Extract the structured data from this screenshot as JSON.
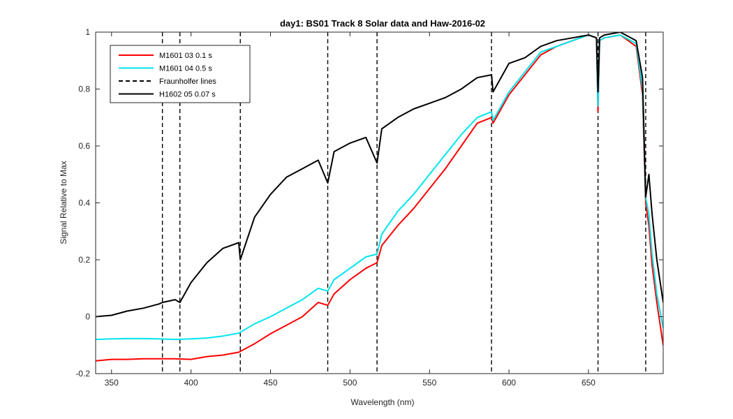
{
  "chart_data": {
    "type": "line",
    "title": "day1: BS01  Track 8 Solar data and Haw-2016-02",
    "xlabel": "Wavelength (nm)",
    "ylabel": "Signal Relative to Max",
    "xlim": [
      340,
      697
    ],
    "ylim": [
      -0.2,
      1
    ],
    "xticks": [
      350,
      400,
      450,
      500,
      550,
      600,
      650
    ],
    "yticks": [
      -0.2,
      0,
      0.2,
      0.4,
      0.6,
      0.8,
      1
    ],
    "xtick_labels": [
      "350",
      "400",
      "450",
      "500",
      "550",
      "600",
      "650"
    ],
    "ytick_labels": [
      "-0.2",
      "0",
      "0.2",
      "0.4",
      "0.6",
      "0.8",
      "1"
    ],
    "grid": false,
    "legend_position": "top-left",
    "vlines": [
      382,
      393,
      431,
      486,
      517,
      589,
      656,
      686
    ],
    "series": [
      {
        "name": "M1601 03 0.1 s",
        "color": "#ff0000",
        "style": "solid",
        "x": [
          340,
          350,
          360,
          370,
          380,
          390,
          400,
          410,
          420,
          430,
          440,
          450,
          460,
          470,
          480,
          486,
          490,
          500,
          510,
          517,
          520,
          530,
          540,
          550,
          560,
          570,
          580,
          589,
          590,
          600,
          610,
          620,
          630,
          640,
          650,
          655,
          656,
          657,
          660,
          670,
          680,
          684,
          686,
          688,
          690,
          693,
          697
        ],
        "y": [
          -0.155,
          -0.15,
          -0.15,
          -0.148,
          -0.148,
          -0.148,
          -0.15,
          -0.14,
          -0.135,
          -0.125,
          -0.095,
          -0.06,
          -0.03,
          0.0,
          0.05,
          0.04,
          0.08,
          0.13,
          0.17,
          0.19,
          0.25,
          0.32,
          0.38,
          0.45,
          0.52,
          0.6,
          0.68,
          0.7,
          0.68,
          0.78,
          0.85,
          0.92,
          0.95,
          0.97,
          0.99,
          0.98,
          0.72,
          0.97,
          0.98,
          0.99,
          0.95,
          0.78,
          0.4,
          0.32,
          0.18,
          0.05,
          -0.1
        ]
      },
      {
        "name": "M1601 04 0.5 s",
        "color": "#00e5ee",
        "style": "solid",
        "x": [
          340,
          350,
          360,
          370,
          380,
          390,
          400,
          410,
          420,
          430,
          440,
          450,
          460,
          470,
          480,
          486,
          490,
          500,
          510,
          517,
          520,
          530,
          540,
          550,
          560,
          570,
          580,
          589,
          590,
          600,
          610,
          620,
          630,
          640,
          650,
          655,
          656,
          657,
          660,
          670,
          680,
          684,
          686,
          688,
          690,
          693,
          697
        ],
        "y": [
          -0.08,
          -0.078,
          -0.077,
          -0.077,
          -0.078,
          -0.08,
          -0.078,
          -0.075,
          -0.068,
          -0.058,
          -0.025,
          0.0,
          0.03,
          0.06,
          0.1,
          0.09,
          0.13,
          0.17,
          0.21,
          0.22,
          0.29,
          0.37,
          0.43,
          0.5,
          0.57,
          0.64,
          0.7,
          0.72,
          0.69,
          0.79,
          0.86,
          0.93,
          0.95,
          0.97,
          0.99,
          0.98,
          0.74,
          0.97,
          0.98,
          0.99,
          0.96,
          0.8,
          0.42,
          0.36,
          0.22,
          0.08,
          -0.04
        ]
      },
      {
        "name": "H1602 05 0.07 s",
        "color": "#000000",
        "style": "solid",
        "x": [
          340,
          350,
          360,
          370,
          380,
          382,
          390,
          393,
          400,
          410,
          420,
          430,
          431,
          440,
          450,
          460,
          470,
          480,
          486,
          490,
          500,
          510,
          517,
          520,
          530,
          540,
          550,
          560,
          570,
          580,
          589,
          590,
          600,
          610,
          620,
          630,
          640,
          650,
          655,
          656,
          657,
          660,
          670,
          680,
          684,
          686,
          688,
          690,
          693,
          697
        ],
        "y": [
          0.0,
          0.005,
          0.02,
          0.03,
          0.045,
          0.05,
          0.06,
          0.05,
          0.12,
          0.19,
          0.24,
          0.26,
          0.2,
          0.35,
          0.43,
          0.49,
          0.52,
          0.55,
          0.47,
          0.58,
          0.61,
          0.63,
          0.54,
          0.66,
          0.7,
          0.73,
          0.75,
          0.77,
          0.8,
          0.84,
          0.85,
          0.79,
          0.89,
          0.91,
          0.95,
          0.97,
          0.98,
          0.99,
          0.98,
          0.79,
          0.98,
          0.99,
          1.0,
          0.97,
          0.84,
          0.42,
          0.5,
          0.36,
          0.2,
          0.05
        ]
      }
    ],
    "legend": [
      {
        "label": "M1601 03 0.1 s",
        "color": "#ff0000",
        "style": "solid"
      },
      {
        "label": "M1601 04 0.5 s",
        "color": "#00e5ee",
        "style": "solid"
      },
      {
        "label": "Fraunholfer lines",
        "color": "#000000",
        "style": "dashed"
      },
      {
        "label": "H1602 05 0.07 s",
        "color": "#000000",
        "style": "solid"
      }
    ]
  }
}
